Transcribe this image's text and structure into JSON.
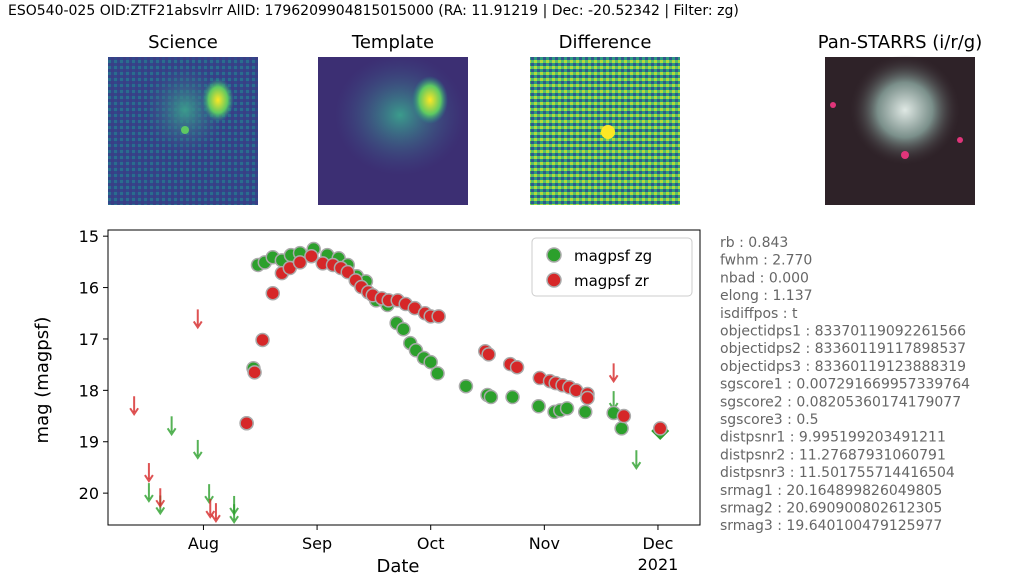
{
  "title": "ESO540-025 OID:ZTF21absvlrr AlID: 1796209904815015000 (RA: 11.91219 | Dec: -20.52342 | Filter: zg)",
  "images": [
    "Science",
    "Template",
    "Difference",
    "Pan-STARRS (i/r/g)"
  ],
  "info": [
    "rb : 0.843",
    "fwhm : 2.770",
    "nbad : 0.000",
    "elong : 1.137",
    "isdiffpos : t",
    "objectidps1 : 83370119092261566",
    "objectidps2 : 83360119117898537",
    "objectidps3 : 83360119123888319",
    "sgscore1 : 0.007291669957339764",
    "sgscore2 : 0.08205360174179077",
    "sgscore3 : 0.5",
    "distpsnr1 : 9.995199203491211",
    "distpsnr2 : 11.27687931060791",
    "distpsnr3 : 11.501755714416504",
    "srmag1 : 20.164899826049805",
    "srmag2 : 20.690900802612305",
    "srmag3 : 19.640100479125977"
  ],
  "chart_data": {
    "type": "scatter",
    "xlabel": "Date",
    "ylabel": "mag (magpsf)",
    "xlim": [
      7.16,
      12.37
    ],
    "ylim": [
      14.88,
      20.62
    ],
    "y_inverted": true,
    "xticks": [
      {
        "value": 8,
        "label": "Aug"
      },
      {
        "value": 9,
        "label": "Sep"
      },
      {
        "value": 10,
        "label": "Oct"
      },
      {
        "value": 11,
        "label": "Nov"
      },
      {
        "value": 12,
        "label": "Dec"
      }
    ],
    "x_year_label": "2021",
    "yticks": [
      15,
      16,
      17,
      18,
      19,
      20
    ],
    "legend": "upper right",
    "series": [
      {
        "name": "magpsf zg",
        "color": "#2ca02c",
        "x": [
          8.38,
          8.44,
          8.48,
          8.54,
          8.61,
          8.69,
          8.77,
          8.85,
          8.97,
          9.09,
          9.19,
          9.27,
          9.35,
          9.43,
          9.52,
          9.62,
          9.7,
          9.76,
          9.82,
          9.87,
          9.94,
          10.0,
          10.06,
          10.31,
          10.5,
          10.53,
          10.72,
          10.95,
          11.09,
          11.14,
          11.2,
          11.36,
          11.61,
          11.68
        ],
        "values": [
          18.64,
          17.57,
          15.56,
          15.51,
          15.41,
          15.47,
          15.37,
          15.33,
          15.25,
          15.37,
          15.43,
          15.56,
          15.78,
          15.88,
          16.25,
          16.34,
          16.69,
          16.81,
          17.08,
          17.22,
          17.37,
          17.45,
          17.67,
          17.92,
          18.09,
          18.13,
          18.13,
          18.31,
          18.42,
          18.39,
          18.35,
          18.42,
          18.44,
          18.74
        ],
        "limits_x": [
          7.52,
          7.62,
          7.72,
          7.95,
          8.05,
          8.27,
          8.27,
          11.61,
          11.81
        ],
        "limits": [
          19.98,
          20.22,
          18.68,
          19.14,
          20.0,
          20.23,
          20.39,
          18.19,
          19.34
        ],
        "diamond_x": [
          12.02
        ],
        "diamond": [
          18.79
        ]
      },
      {
        "name": "magpsf zr",
        "color": "#d62728",
        "x": [
          8.38,
          8.45,
          8.52,
          8.61,
          8.69,
          8.76,
          8.85,
          8.95,
          9.05,
          9.14,
          9.21,
          9.27,
          9.34,
          9.39,
          9.45,
          9.49,
          9.57,
          9.63,
          9.71,
          9.78,
          9.86,
          9.95,
          10.0,
          10.07,
          10.48,
          10.51,
          10.7,
          10.76,
          10.96,
          11.05,
          11.1,
          11.16,
          11.22,
          11.28,
          11.38,
          11.38,
          11.7,
          12.02
        ],
        "values": [
          18.64,
          17.65,
          17.02,
          16.11,
          15.72,
          15.62,
          15.51,
          15.39,
          15.53,
          15.56,
          15.62,
          15.7,
          15.86,
          15.99,
          16.09,
          16.15,
          16.21,
          16.25,
          16.25,
          16.32,
          16.4,
          16.5,
          16.56,
          16.56,
          17.24,
          17.3,
          17.49,
          17.55,
          17.76,
          17.82,
          17.86,
          17.9,
          17.94,
          18.0,
          18.07,
          18.15,
          18.5,
          18.74
        ],
        "limits_x": [
          7.39,
          7.52,
          7.62,
          7.95,
          8.06,
          8.11,
          11.61
        ],
        "limits": [
          18.29,
          19.59,
          20.08,
          16.6,
          20.29,
          20.37,
          17.65
        ]
      }
    ]
  }
}
